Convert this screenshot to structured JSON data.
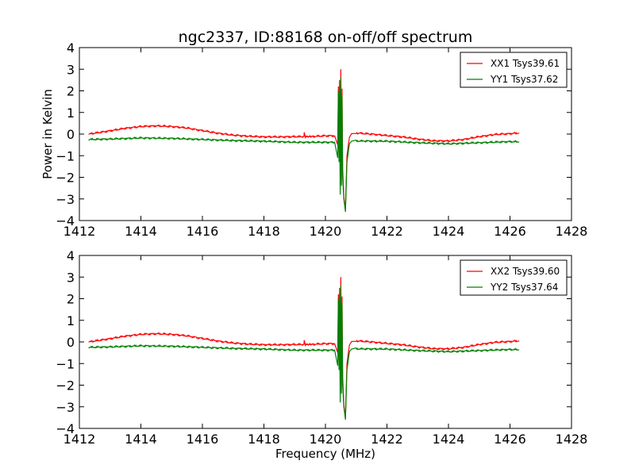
{
  "chart_data": [
    {
      "type": "line",
      "title": "ngc2337, ID:88168 on-off/off spectrum",
      "xlabel": "",
      "ylabel": "Power in Kelvin",
      "xlim": [
        1412,
        1428
      ],
      "ylim": [
        -4,
        4
      ],
      "xticks": [
        1412,
        1414,
        1416,
        1418,
        1420,
        1422,
        1424,
        1426,
        1428
      ],
      "yticks": [
        -4,
        -3,
        -2,
        -1,
        0,
        1,
        2,
        3,
        4
      ],
      "legend_position": "top-right",
      "series": [
        {
          "name": "XX1 Tsys39.61",
          "color": "#ff0000",
          "x": [
            1412.3,
            1413.0,
            1413.5,
            1414.0,
            1414.5,
            1415.0,
            1415.5,
            1416.0,
            1416.5,
            1417.0,
            1417.5,
            1418.0,
            1418.5,
            1419.0,
            1419.3,
            1419.31,
            1419.35,
            1419.6,
            1420.0,
            1420.3,
            1420.4,
            1420.42,
            1420.44,
            1420.46,
            1420.48,
            1420.5,
            1420.52,
            1420.54,
            1420.56,
            1420.6,
            1420.65,
            1420.7,
            1420.78,
            1420.85,
            1421.0,
            1421.5,
            1422.0,
            1422.5,
            1423.0,
            1423.5,
            1424.0,
            1424.5,
            1425.0,
            1425.5,
            1426.0,
            1426.3
          ],
          "y": [
            0.0,
            0.15,
            0.27,
            0.35,
            0.38,
            0.35,
            0.28,
            0.16,
            0.04,
            -0.05,
            -0.1,
            -0.13,
            -0.13,
            -0.12,
            -0.12,
            0.08,
            -0.12,
            -0.11,
            -0.08,
            -0.08,
            -0.5,
            2.2,
            -1.0,
            2.5,
            -2.0,
            3.0,
            -2.3,
            2.1,
            -1.6,
            -2.9,
            -3.5,
            -1.0,
            -0.15,
            0.02,
            0.05,
            0.0,
            -0.07,
            -0.13,
            -0.23,
            -0.31,
            -0.32,
            -0.25,
            -0.12,
            -0.02,
            0.02,
            0.05
          ]
        },
        {
          "name": "YY1 Tsys37.62",
          "color": "#008000",
          "x": [
            1412.3,
            1413.0,
            1414.0,
            1415.0,
            1416.0,
            1417.0,
            1418.0,
            1419.0,
            1420.0,
            1420.3,
            1420.4,
            1420.42,
            1420.44,
            1420.46,
            1420.48,
            1420.5,
            1420.52,
            1420.54,
            1420.56,
            1420.6,
            1420.65,
            1420.7,
            1420.78,
            1420.85,
            1421.0,
            1422.0,
            1423.0,
            1424.0,
            1425.0,
            1426.0,
            1426.3
          ],
          "y": [
            -0.25,
            -0.23,
            -0.18,
            -0.2,
            -0.25,
            -0.3,
            -0.33,
            -0.38,
            -0.38,
            -0.38,
            -1.1,
            2.0,
            -1.3,
            2.2,
            -2.8,
            2.6,
            -2.4,
            1.8,
            -2.0,
            -3.0,
            -3.6,
            -1.3,
            -0.45,
            -0.33,
            -0.32,
            -0.33,
            -0.4,
            -0.45,
            -0.4,
            -0.35,
            -0.36
          ]
        }
      ]
    },
    {
      "type": "line",
      "title": "",
      "xlabel": "Frequency (MHz)",
      "ylabel": "",
      "xlim": [
        1412,
        1428
      ],
      "ylim": [
        -4,
        4
      ],
      "xticks": [
        1412,
        1414,
        1416,
        1418,
        1420,
        1422,
        1424,
        1426,
        1428
      ],
      "yticks": [
        -4,
        -3,
        -2,
        -1,
        0,
        1,
        2,
        3,
        4
      ],
      "legend_position": "top-right",
      "series": [
        {
          "name": "XX2 Tsys39.60",
          "color": "#ff0000",
          "x": [
            1412.3,
            1413.0,
            1413.5,
            1414.0,
            1414.5,
            1415.0,
            1415.5,
            1416.0,
            1416.5,
            1417.0,
            1417.5,
            1418.0,
            1418.5,
            1419.0,
            1419.3,
            1419.31,
            1419.35,
            1419.6,
            1420.0,
            1420.3,
            1420.4,
            1420.42,
            1420.44,
            1420.46,
            1420.48,
            1420.5,
            1420.52,
            1420.54,
            1420.56,
            1420.6,
            1420.65,
            1420.7,
            1420.78,
            1420.85,
            1421.0,
            1421.5,
            1422.0,
            1422.5,
            1423.0,
            1423.5,
            1424.0,
            1424.5,
            1425.0,
            1425.5,
            1426.0,
            1426.3
          ],
          "y": [
            0.0,
            0.15,
            0.27,
            0.35,
            0.38,
            0.35,
            0.28,
            0.16,
            0.04,
            -0.05,
            -0.1,
            -0.13,
            -0.13,
            -0.12,
            -0.12,
            0.08,
            -0.12,
            -0.11,
            -0.08,
            -0.08,
            -0.5,
            2.2,
            -1.0,
            2.5,
            -2.0,
            3.0,
            -2.3,
            2.1,
            -1.6,
            -2.9,
            -3.5,
            -1.0,
            -0.15,
            0.02,
            0.05,
            0.0,
            -0.07,
            -0.13,
            -0.23,
            -0.31,
            -0.32,
            -0.25,
            -0.12,
            -0.02,
            0.02,
            0.05
          ]
        },
        {
          "name": "YY2 Tsys37.64",
          "color": "#008000",
          "x": [
            1412.3,
            1413.0,
            1414.0,
            1415.0,
            1416.0,
            1417.0,
            1418.0,
            1419.0,
            1420.0,
            1420.3,
            1420.4,
            1420.42,
            1420.44,
            1420.46,
            1420.48,
            1420.5,
            1420.52,
            1420.54,
            1420.56,
            1420.6,
            1420.65,
            1420.7,
            1420.78,
            1420.85,
            1421.0,
            1422.0,
            1423.0,
            1424.0,
            1425.0,
            1426.0,
            1426.3
          ],
          "y": [
            -0.25,
            -0.23,
            -0.18,
            -0.2,
            -0.25,
            -0.3,
            -0.33,
            -0.38,
            -0.38,
            -0.38,
            -1.1,
            2.0,
            -1.3,
            2.2,
            -2.8,
            2.6,
            -2.4,
            1.8,
            -2.0,
            -3.0,
            -3.6,
            -1.3,
            -0.45,
            -0.33,
            -0.32,
            -0.33,
            -0.4,
            -0.45,
            -0.4,
            -0.35,
            -0.36
          ]
        }
      ]
    }
  ]
}
